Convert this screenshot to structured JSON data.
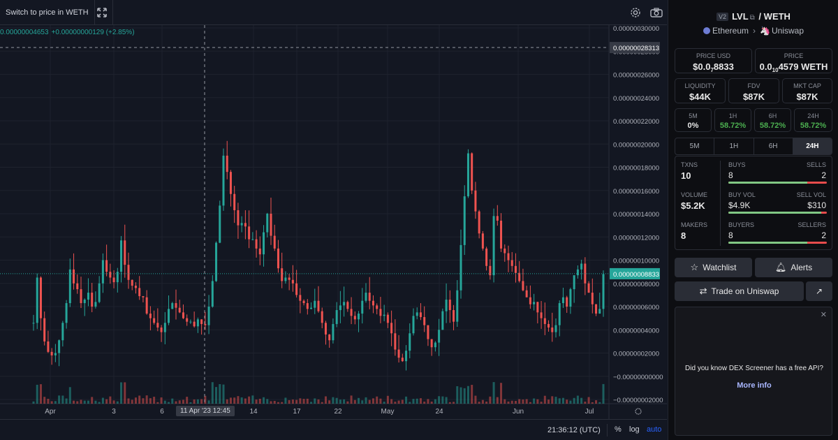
{
  "toolbar": {
    "switch_label": "Switch to price in WETH",
    "expand_icon": "expand-icon",
    "settings_icon": "gear-icon",
    "camera_icon": "camera-icon"
  },
  "legend": {
    "price": "0.00000004653",
    "change": "+0.00000000129 (+2.85%)"
  },
  "crosshair": {
    "price_label": "0.00000028313",
    "date_label": "11 Apr '23  12:45"
  },
  "last_price_label": "0.00000008833",
  "bottom": {
    "clock": "21:36:12 (UTC)",
    "percent": "%",
    "log": "log",
    "auto": "auto"
  },
  "colors": {
    "up": "#26a69a",
    "down": "#ef5350",
    "accent": "#2962ff",
    "bg": "#131722"
  },
  "chart_data": {
    "type": "candlestick",
    "x_ticks": [
      "Apr",
      "3",
      "6",
      "14",
      "17",
      "22",
      "May",
      "24",
      "Jun",
      "Jul"
    ],
    "y_ticks": [
      "0.00000030000",
      "0.00000028000",
      "0.00000026000",
      "0.00000024000",
      "0.00000022000",
      "0.00000020000",
      "0.00000018000",
      "0.00000016000",
      "0.00000014000",
      "0.00000012000",
      "0.00000010000",
      "0.00000008000",
      "0.00000006000",
      "0.00000004000",
      "0.00000002000",
      "−0.00000000000",
      "−0.00000002000"
    ],
    "ylim": [
      -2e-08,
      3e-07
    ],
    "series": [
      {
        "values": [
          4.6,
          8.5,
          5.0,
          3.0,
          2.1,
          1.8,
          2.0,
          3.1,
          4.6,
          6.3,
          9.2,
          8.0,
          7.5,
          6.3,
          6.6,
          7.2,
          6.0,
          6.4,
          8.0,
          10.0,
          9.0,
          8.5,
          8.1,
          9.0,
          11.7,
          9.6,
          8.3,
          7.8,
          7.6,
          6.9,
          6.8,
          5.4,
          5.0,
          4.6,
          4.2,
          3.8,
          4.6,
          5.8,
          6.3,
          5.9,
          5.5,
          5.0,
          4.7,
          4.7,
          4.3,
          4.9,
          4.5,
          4.4,
          6.0,
          8.2,
          11.5,
          14.7,
          19.0,
          17.6,
          15.7,
          14.3,
          13.0,
          13.2,
          12.9,
          11.8,
          11.8,
          11.0,
          10.5,
          12.4,
          14.0,
          12.1,
          11.0,
          9.3,
          8.2,
          8.5,
          8.3,
          8.0,
          7.0,
          6.5,
          6.3,
          5.8,
          5.9,
          6.5,
          5.6,
          4.6,
          3.6,
          3.1,
          4.5,
          5.7,
          6.1,
          6.4,
          5.8,
          5.2,
          4.9,
          5.4,
          6.5,
          7.2,
          6.5,
          6.1,
          5.8,
          5.2,
          5.3,
          4.6,
          3.7,
          2.3,
          1.6,
          1.3,
          2.2,
          3.7,
          5.2,
          5.5,
          5.1,
          4.4,
          3.2,
          2.5,
          2.9,
          4.0,
          5.6,
          6.6,
          5.7,
          4.7,
          7.4,
          11.3,
          15.5,
          19.2,
          16.0,
          14.2,
          12.3,
          11.0,
          9.5,
          8.7,
          13.8,
          13.4,
          11.0,
          10.6,
          10.0,
          9.5,
          8.9,
          8.2,
          7.4,
          6.8,
          6.2,
          6.4,
          5.5,
          5.0,
          4.5,
          4.2,
          3.8,
          4.4,
          6.3,
          6.8,
          6.0,
          7.5,
          8.7,
          9.2,
          9.7,
          8.0,
          7.2,
          6.2,
          5.4,
          5.8,
          8.8
        ]
      }
    ],
    "volume": true,
    "crosshair_price": 2.8313e-07,
    "last_price": 8.833e-08
  },
  "side": {
    "badge": "V2",
    "base": "LVL",
    "sep": "/",
    "quote": "WETH",
    "chain": "Ethereum",
    "dex": "Uniswap",
    "price_usd_label": "PRICE USD",
    "price_usd_main": "$0.0",
    "price_usd_sub": "7",
    "price_usd_tail": "8833",
    "price_label": "PRICE",
    "price_main": "0.0",
    "price_sub": "10",
    "price_tail": "4579 WETH",
    "liquidity_label": "LIQUIDITY",
    "liquidity": "$44K",
    "fdv_label": "FDV",
    "fdv": "$87K",
    "mcap_label": "MKT CAP",
    "mcap": "$87K",
    "changes": [
      {
        "label": "5M",
        "value": "0%"
      },
      {
        "label": "1H",
        "value": "58.72%"
      },
      {
        "label": "6H",
        "value": "58.72%"
      },
      {
        "label": "24H",
        "value": "58.72%"
      }
    ],
    "tabs": [
      "5M",
      "1H",
      "6H",
      "24H"
    ],
    "stats": {
      "txns_label": "TXNS",
      "txns": "10",
      "buys_label": "BUYS",
      "buys": "8",
      "sells_label": "SELLS",
      "sells": "2",
      "buy_ratio": 0.8,
      "volume_label": "VOLUME",
      "volume": "$5.2K",
      "buyvol_label": "BUY VOL",
      "buyvol": "$4.9K",
      "sellvol_label": "SELL VOL",
      "sellvol": "$310",
      "vol_ratio": 0.94,
      "makers_label": "MAKERS",
      "makers": "8",
      "buyers_label": "BUYERS",
      "buyers": "8",
      "sellers_label": "SELLERS",
      "sellers": "2",
      "buyers_ratio": 0.8
    },
    "watchlist": "Watchlist",
    "alerts": "Alerts",
    "trade": "Trade on Uniswap",
    "ad_text": "Did you know DEX Screener has a free API?",
    "ad_link": "More info"
  }
}
